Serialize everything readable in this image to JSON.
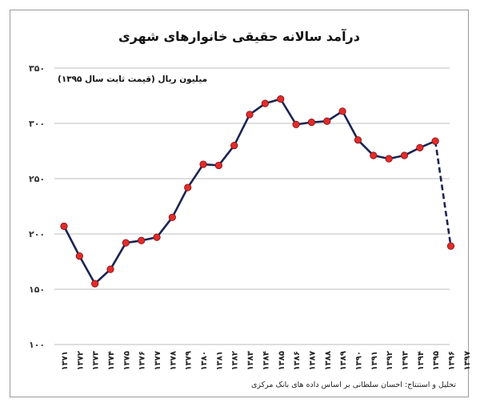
{
  "chart_data": {
    "type": "line",
    "title": "درآمد سالانه حقیقی خانوارهای شهری",
    "ylabel": "میلیون ریال (قیمت ثابت سال ۱۳۹۵)",
    "xlabel": "",
    "source": "تحلیل و استنتاج: احسان سلطانی بر اساس داده های بانک مرکزی",
    "ylim": [
      100,
      350
    ],
    "yticks": [
      "۱۰۰",
      "۱۵۰",
      "۲۰۰",
      "۲۵۰",
      "۳۰۰",
      "۳۵۰"
    ],
    "ytick_values": [
      100,
      150,
      200,
      250,
      300,
      350
    ],
    "categories": [
      "۱۳۷۱",
      "۱۳۷۲",
      "۱۳۷۳",
      "۱۳۷۴",
      "۱۳۷۵",
      "۱۳۷۶",
      "۱۳۷۷",
      "۱۳۷۸",
      "۱۳۷۹",
      "۱۳۸۰",
      "۱۳۸۱",
      "۱۳۸۲",
      "۱۳۸۳",
      "۱۳۸۴",
      "۱۳۸۵",
      "۱۳۸۶",
      "۱۳۸۷",
      "۱۳۸۸",
      "۱۳۸۹",
      "۱۳۹۰",
      "۱۳۹۱",
      "۱۳۹۲",
      "۱۳۹۳",
      "۱۳۹۴",
      "۱۳۹۵",
      "۱۳۹۶",
      "۱۳۹۷"
    ],
    "values": [
      207,
      180,
      155,
      168,
      192,
      194,
      197,
      215,
      242,
      263,
      262,
      280,
      308,
      318,
      322,
      299,
      301,
      302,
      311,
      285,
      271,
      268,
      271,
      278,
      284,
      189,
      null
    ],
    "dashed_from_index": 24,
    "grid": true,
    "colors": {
      "line": "#1c2452",
      "marker": "#e32b2b",
      "grid": "#bdbdbd"
    }
  }
}
